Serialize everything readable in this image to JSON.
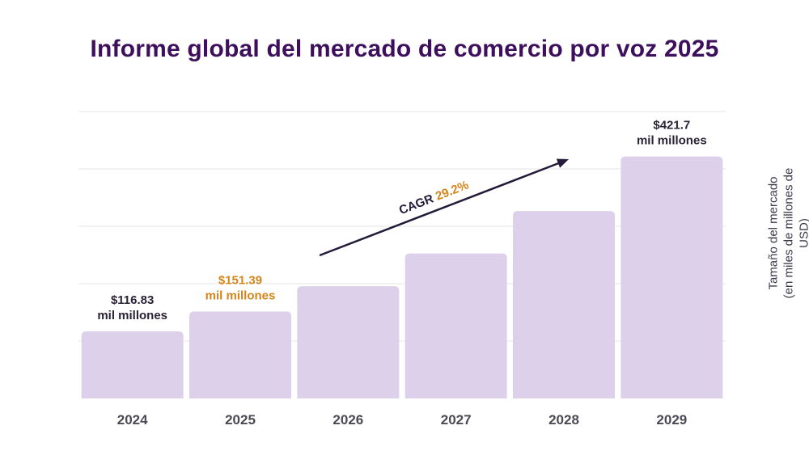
{
  "title": "Informe global del mercado de comercio por voz 2025",
  "colors": {
    "title": "#3d0f5c",
    "bar": "#ddd0ea",
    "grid": "#e6e6e6",
    "text_dark": "#2a2235",
    "highlight": "#d4851a",
    "arrow": "#241a3a"
  },
  "chart_data": {
    "type": "bar",
    "title": "Informe global del mercado de comercio por voz 2025",
    "categories": [
      "2024",
      "2025",
      "2026",
      "2027",
      "2028",
      "2029"
    ],
    "values": [
      116.83,
      151.39,
      195.6,
      252.7,
      326.5,
      421.7
    ],
    "ylabel_line1": "Tamaño del mercado",
    "ylabel_line2": "(en miles de millones de USD)",
    "ylim": [
      0,
      500
    ],
    "grid": true,
    "annotations": [
      {
        "index": 0,
        "value_text": "$116.83",
        "unit_text": "mil millones",
        "color": "#2a2235"
      },
      {
        "index": 1,
        "value_text": "$151.39",
        "unit_text": "mil millones",
        "color": "#d4851a"
      },
      {
        "index": 5,
        "value_text": "$421.7",
        "unit_text": "mil millones",
        "color": "#2a2235"
      }
    ],
    "cagr": {
      "label": "CAGR",
      "value": "29.2%"
    }
  }
}
